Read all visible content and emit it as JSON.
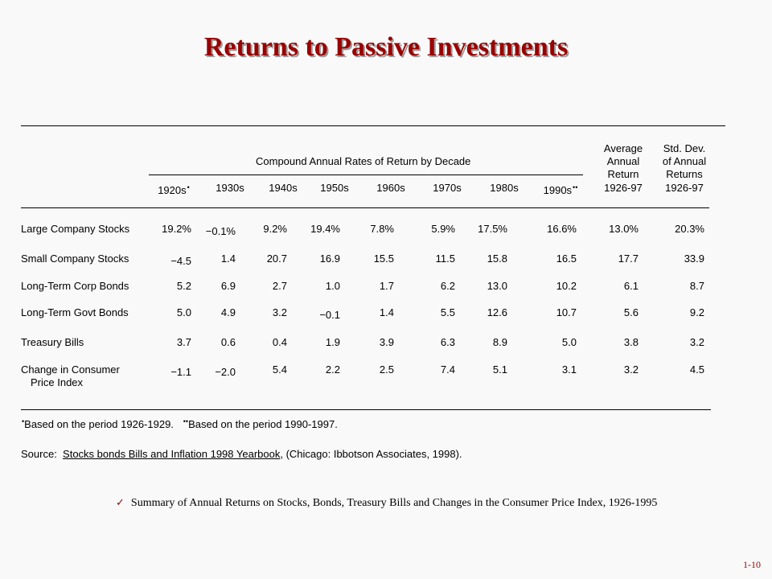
{
  "title": "Returns to Passive Investments",
  "table": {
    "group_header": "Compound Annual Rates of Return by Decade",
    "avg_header": [
      "Average",
      "Annual",
      "Return",
      "1926-97"
    ],
    "std_header": [
      "Std. Dev.",
      "of Annual",
      "Returns",
      "1926-97"
    ],
    "decades": [
      "1920s",
      "1930s",
      "1940s",
      "1950s",
      "1960s",
      "1970s",
      "1980s",
      "1990s"
    ],
    "decade_marks": {
      "1920s": "•",
      "1990s": "••"
    },
    "rows": [
      {
        "label": [
          "Large Company Stocks"
        ],
        "values": [
          "19.2%",
          "−0.1%",
          "9.2%",
          "19.4%",
          "7.8%",
          "5.9%",
          "17.5%",
          "16.6%",
          "13.0%",
          "20.3%"
        ]
      },
      {
        "label": [
          "Small Company Stocks"
        ],
        "values": [
          "−4.5",
          "1.4",
          "20.7",
          "16.9",
          "15.5",
          "11.5",
          "15.8",
          "16.5",
          "17.7",
          "33.9"
        ]
      },
      {
        "label": [
          "Long-Term Corp Bonds"
        ],
        "values": [
          "5.2",
          "6.9",
          "2.7",
          "1.0",
          "1.7",
          "6.2",
          "13.0",
          "10.2",
          "6.1",
          "8.7"
        ]
      },
      {
        "label": [
          "Long-Term Govt Bonds"
        ],
        "values": [
          "5.0",
          "4.9",
          "3.2",
          "−0.1",
          "1.4",
          "5.5",
          "12.6",
          "10.7",
          "5.6",
          "9.2"
        ]
      },
      {
        "label": [
          "Treasury Bills"
        ],
        "values": [
          "3.7",
          "0.6",
          "0.4",
          "1.9",
          "3.9",
          "6.3",
          "8.9",
          "5.0",
          "3.8",
          "3.2"
        ]
      },
      {
        "label": [
          "Change in Consumer",
          "Price Index"
        ],
        "values": [
          "−1.1",
          "−2.0",
          "5.4",
          "2.2",
          "2.5",
          "7.4",
          "5.1",
          "3.1",
          "3.2",
          "4.5"
        ]
      }
    ]
  },
  "footnotes": {
    "mark1": "•",
    "note1": "Based on the period 1926-1929.",
    "mark2": "••",
    "note2": "Based on the period 1990-1997.",
    "source_prefix": "Source:",
    "source_title": "Stocks bonds Bills and Inflation 1998 Yearbook",
    "source_suffix": ", (Chicago: Ibbotson Associates, 1998)."
  },
  "summary": {
    "icon": "checkmark-icon",
    "check_glyph": "✓",
    "text": "Summary of Annual Returns on Stocks, Bonds, Treasury Bills and Changes in the Consumer Price Index, 1926-1995"
  },
  "page_number": "1-10",
  "colors": {
    "title": "#990000",
    "accent": "#990000"
  }
}
